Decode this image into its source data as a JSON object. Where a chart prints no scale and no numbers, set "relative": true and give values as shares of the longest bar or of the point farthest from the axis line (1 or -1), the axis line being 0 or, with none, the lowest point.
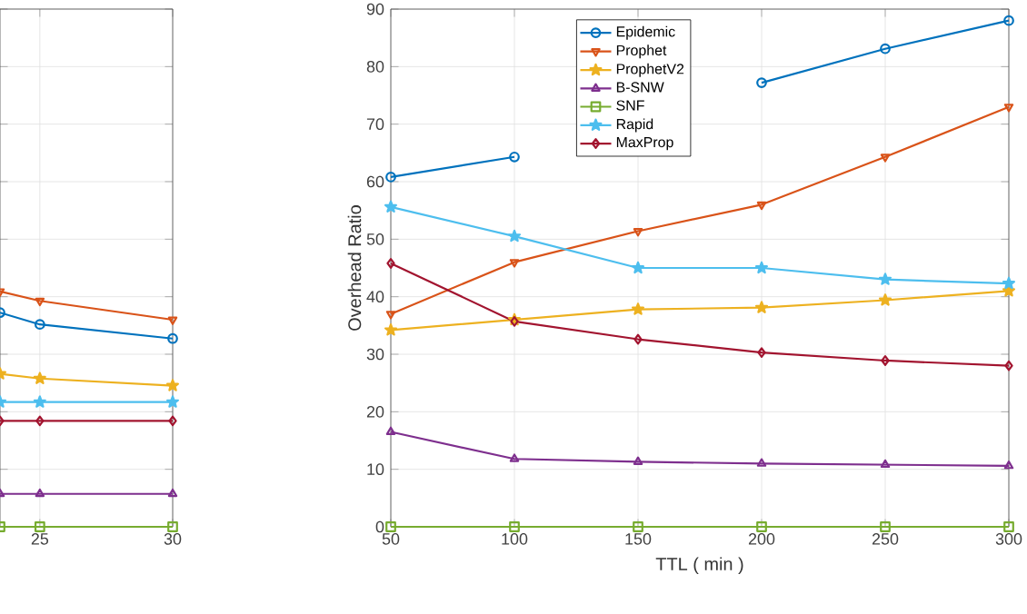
{
  "chart_data": [
    {
      "type": "line",
      "relative": true,
      "x": [
        23.5,
        25,
        30
      ],
      "xlim": [
        23.5,
        30
      ],
      "xticks": [
        25,
        30
      ],
      "tick_labels": "x",
      "grid": true,
      "legend": false,
      "series": [
        {
          "color": "#0072bd",
          "marker": "circle",
          "values": [
            0.91,
            0.86,
            0.8
          ]
        },
        {
          "color": "#d95319",
          "marker": "triangle down",
          "values": [
            1,
            0.96,
            0.88
          ]
        },
        {
          "color": "#edb120",
          "marker": "star",
          "values": [
            0.65,
            0.63,
            0.6
          ]
        },
        {
          "color": "#7e2f8e",
          "marker": "triangle",
          "values": [
            0.14,
            0.14,
            0.14
          ]
        },
        {
          "color": "#77ac30",
          "marker": "square",
          "values": [
            0,
            0,
            0
          ]
        },
        {
          "color": "#4dbeee",
          "marker": "star",
          "values": [
            0.53,
            0.53,
            0.53
          ]
        },
        {
          "color": "#a2142f",
          "marker": "diamond",
          "values": [
            0.45,
            0.45,
            0.45
          ]
        }
      ]
    },
    {
      "type": "line",
      "xlabel": "TTL ( min )",
      "ylabel": "Overhead Ratio",
      "x": [
        50,
        100,
        150,
        200,
        250,
        300
      ],
      "xlim": [
        50,
        300
      ],
      "xticks": [
        50,
        100,
        150,
        200,
        250,
        300
      ],
      "ylim": [
        0,
        90
      ],
      "yticks": [
        0,
        10,
        20,
        30,
        40,
        50,
        60,
        70,
        80,
        90
      ],
      "grid": true,
      "legend": "top left",
      "series": [
        {
          "name": "Epidemic",
          "color": "#0072bd",
          "marker": "circle",
          "values": [
            60.8,
            64.3,
            null,
            77.2,
            83.1,
            88
          ]
        },
        {
          "name": "Prophet",
          "color": "#d95319",
          "marker": "triangle down",
          "values": [
            37,
            46,
            51.4,
            56,
            64.3,
            73
          ]
        },
        {
          "name": "ProphetV2",
          "color": "#edb120",
          "marker": "star",
          "values": [
            34.2,
            36,
            37.8,
            38.1,
            39.4,
            41
          ]
        },
        {
          "name": "B-SNW",
          "color": "#7e2f8e",
          "marker": "triangle",
          "values": [
            16.5,
            11.8,
            11.3,
            11,
            10.8,
            10.6
          ]
        },
        {
          "name": "SNF",
          "color": "#77ac30",
          "marker": "square",
          "values": [
            0,
            0,
            0,
            0,
            0,
            0
          ]
        },
        {
          "name": "Rapid",
          "color": "#4dbeee",
          "marker": "star",
          "values": [
            55.6,
            50.5,
            45,
            45,
            43,
            42.3
          ]
        },
        {
          "name": "MaxProp",
          "color": "#a2142f",
          "marker": "diamond",
          "values": [
            45.8,
            35.7,
            32.6,
            30.3,
            28.9,
            28
          ]
        }
      ]
    }
  ]
}
